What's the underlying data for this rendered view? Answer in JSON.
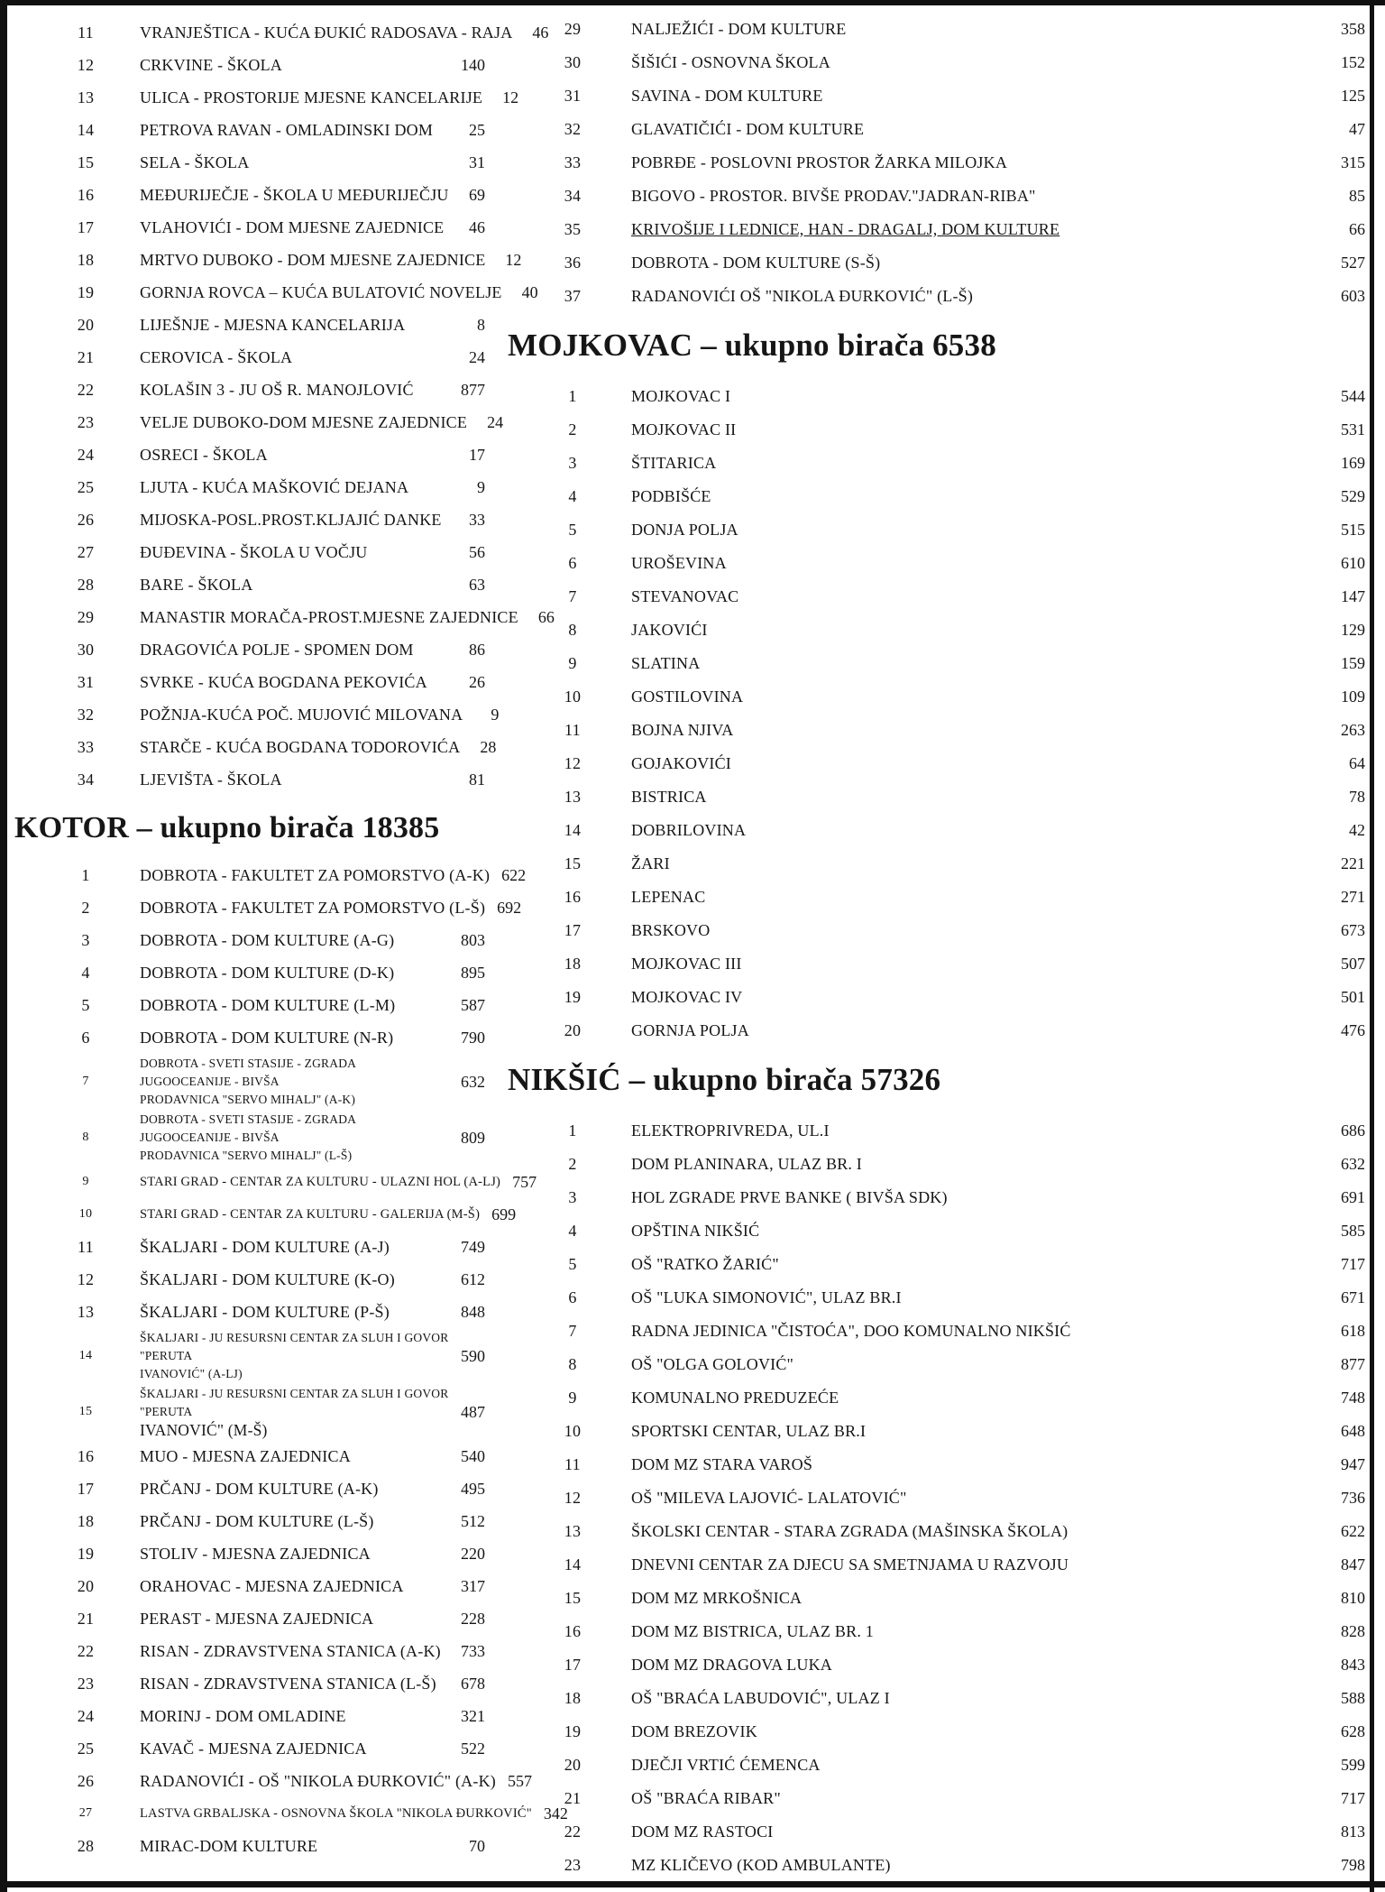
{
  "document": {
    "columns": [
      {
        "name": "left",
        "blocks": [
          {
            "type": "entries",
            "rows": [
              {
                "n": "11",
                "t": "VRANJEŠTICA - KUĆA ĐUKIĆ RADOSAVA - RAJA",
                "v": "46"
              },
              {
                "n": "12",
                "t": "CRKVINE - ŠKOLA",
                "v": "140"
              },
              {
                "n": "13",
                "t": "ULICA - PROSTORIJE MJESNE KANCELARIJE",
                "v": "12"
              },
              {
                "n": "14",
                "t": "PETROVA RAVAN - OMLADINSKI DOM",
                "v": "25"
              },
              {
                "n": "15",
                "t": "SELA - ŠKOLA",
                "v": "31"
              },
              {
                "n": "16",
                "t": "MEĐURIJEČJE - ŠKOLA U MEĐURIJEČJU",
                "v": "69"
              },
              {
                "n": "17",
                "t": "VLAHOVIĆI - DOM MJESNE ZAJEDNICE",
                "v": "46"
              },
              {
                "n": "18",
                "t": "MRTVO DUBOKO - DOM MJESNE ZAJEDNICE",
                "v": "12"
              },
              {
                "n": "19",
                "t": "GORNJA ROVCA – KUĆA BULATOVIĆ NOVELJE",
                "v": "40"
              },
              {
                "n": "20",
                "t": "LIJEŠNJE - MJESNA KANCELARIJA",
                "v": "8"
              },
              {
                "n": "21",
                "t": "CEROVICA - ŠKOLA",
                "v": "24"
              },
              {
                "n": "22",
                "t": "KOLAŠIN 3 - JU OŠ R. MANOJLOVIĆ",
                "v": "877"
              },
              {
                "n": "23",
                "t": "VELJE DUBOKO-DOM MJESNE ZAJEDNICE",
                "v": "24"
              },
              {
                "n": "24",
                "t": "OSRECI - ŠKOLA",
                "v": "17"
              },
              {
                "n": "25",
                "t": "LJUTA - KUĆA MAŠKOVIĆ DEJANA",
                "v": "9"
              },
              {
                "n": "26",
                "t": "MIJOSKA-POSL.PROST.KLJAJIĆ DANKE",
                "v": "33"
              },
              {
                "n": "27",
                "t": "ĐUĐEVINA - ŠKOLA U VOČJU",
                "v": "56"
              },
              {
                "n": "28",
                "t": "BARE - ŠKOLA",
                "v": "63"
              },
              {
                "n": "29",
                "t": "MANASTIR MORAČA-PROST.MJESNE ZAJEDNICE",
                "v": "66"
              },
              {
                "n": "30",
                "t": "DRAGOVIĆA POLJE - SPOMEN DOM",
                "v": "86"
              },
              {
                "n": "31",
                "t": "SVRKE - KUĆA BOGDANA PEKOVIĆA",
                "v": "26"
              },
              {
                "n": "32",
                "t": "POŽNJA-KUĆA POČ. MUJOVIĆ MILOVANA",
                "v": "9"
              },
              {
                "n": "33",
                "t": "STARČE - KUĆA BOGDANA TODOROVIĆA",
                "v": "28"
              },
              {
                "n": "34",
                "t": "LJEVIŠTA - ŠKOLA",
                "v": "81"
              }
            ]
          },
          {
            "type": "heading",
            "text": "KOTOR – ukupno birača 18385"
          },
          {
            "type": "entries",
            "rows": [
              {
                "n": "1",
                "t": "DOBROTA - FAKULTET ZA POMORSTVO (A-K)",
                "v": "622"
              },
              {
                "n": "2",
                "t": "DOBROTA - FAKULTET ZA POMORSTVO (L-Š)",
                "v": "692"
              },
              {
                "n": "3",
                "t": "DOBROTA - DOM KULTURE (A-G)",
                "v": "803"
              },
              {
                "n": "4",
                "t": "DOBROTA - DOM KULTURE (D-K)",
                "v": "895"
              },
              {
                "n": "5",
                "t": "DOBROTA - DOM KULTURE (L-M)",
                "v": "587"
              },
              {
                "n": "6",
                "t": "DOBROTA - DOM KULTURE (N-R)",
                "v": "790"
              },
              {
                "n": "7",
                "t": "DOBROTA - SVETI STASIJE - ZGRADA JUGOOCEANIJE - BIVŠA",
                "t2": "PRODAVNICA \"SERVO MIHALJ\" (A-K)",
                "v": "632",
                "cls": "small2"
              },
              {
                "n": "8",
                "t": "DOBROTA - SVETI STASIJE - ZGRADA JUGOOCEANIJE - BIVŠA",
                "t2": "PRODAVNICA \"SERVO MIHALJ\" (L-Š)",
                "v": "809",
                "cls": "small2"
              },
              {
                "n": "9",
                "t": "STARI GRAD - CENTAR ZA KULTURU - ULAZNI HOL (A-LJ)",
                "v": "757",
                "cls": "small"
              },
              {
                "n": "10",
                "t": "STARI GRAD - CENTAR ZA KULTURU - GALERIJA (M-Š)",
                "v": "699",
                "cls": "small"
              },
              {
                "n": "11",
                "t": "ŠKALJARI - DOM KULTURE (A-J)",
                "v": "749"
              },
              {
                "n": "12",
                "t": "ŠKALJARI - DOM KULTURE (K-O)",
                "v": "612"
              },
              {
                "n": "13",
                "t": "ŠKALJARI - DOM KULTURE (P-Š)",
                "v": "848"
              },
              {
                "n": "14",
                "t": "ŠKALJARI - JU RESURSNI CENTAR ZA SLUH I GOVOR \"PERUTA",
                "t2": "IVANOVIĆ\" (A-LJ)",
                "v": "590",
                "cls": "small2"
              },
              {
                "n": "15",
                "t": "ŠKALJARI - JU RESURSNI CENTAR ZA SLUH I GOVOR \"PERUTA",
                "t2": "IVANOVIĆ\" (M-Š)",
                "v": "487",
                "cls": "small2 big2"
              },
              {
                "n": "16",
                "t": "MUO - MJESNA ZAJEDNICA",
                "v": "540"
              },
              {
                "n": "17",
                "t": "PRČANJ - DOM KULTURE (A-K)",
                "v": "495"
              },
              {
                "n": "18",
                "t": "PRČANJ - DOM KULTURE (L-Š)",
                "v": "512"
              },
              {
                "n": "19",
                "t": "STOLIV - MJESNA ZAJEDNICA",
                "v": "220"
              },
              {
                "n": "20",
                "t": "ORAHOVAC - MJESNA ZAJEDNICA",
                "v": "317"
              },
              {
                "n": "21",
                "t": "PERAST - MJESNA ZAJEDNICA",
                "v": "228"
              },
              {
                "n": "22",
                "t": "RISAN - ZDRAVSTVENA STANICA (A-K)",
                "v": "733"
              },
              {
                "n": "23",
                "t": "RISAN - ZDRAVSTVENA STANICA (L-Š)",
                "v": "678"
              },
              {
                "n": "24",
                "t": "MORINJ - DOM OMLADINE",
                "v": "321"
              },
              {
                "n": "25",
                "t": "KAVAČ - MJESNA ZAJEDNICA",
                "v": "522"
              },
              {
                "n": "26",
                "t": "RADANOVIĆI - OŠ \"NIKOLA ĐURKOVIĆ\" (A-K)",
                "v": "557"
              },
              {
                "n": "27",
                "t": "LASTVA GRBALJSKA - OSNOVNA ŠKOLA \"NIKOLA ĐURKOVIĆ\"",
                "v": "342",
                "cls": "small"
              },
              {
                "n": "28",
                "t": "MIRAC-DOM KULTURE",
                "v": "70"
              }
            ]
          }
        ]
      },
      {
        "name": "right",
        "blocks": [
          {
            "type": "entries",
            "rows": [
              {
                "n": "29",
                "t": "NALJEŽIĆI -  DOM KULTURE",
                "v": "358"
              },
              {
                "n": "30",
                "t": "ŠIŠIĆI - OSNOVNA ŠKOLA",
                "v": "152"
              },
              {
                "n": "31",
                "t": "SAVINA - DOM KULTURE",
                "v": "125"
              },
              {
                "n": "32",
                "t": "GLAVATIČIĆI - DOM KULTURE",
                "v": "47"
              },
              {
                "n": "33",
                "t": "POBRĐE - POSLOVNI PROSTOR ŽARKA MILOJKA",
                "v": "315"
              },
              {
                "n": "34",
                "t": "BIGOVO - PROSTOR. BIVŠE PRODAV.\"JADRAN-RIBA\"",
                "v": "85"
              },
              {
                "n": "35",
                "t": "KRIVOŠIJE I LEDNICE, HAN - DRAGALJ, DOM KULTURE",
                "v": "66",
                "cls": "u"
              },
              {
                "n": "36",
                "t": "DOBROTA - DOM KULTURE (S-Š)",
                "v": "527"
              },
              {
                "n": "37",
                "t": "RADANOVIĆI OŠ \"NIKOLA ĐURKOVIĆ\" (L-Š)",
                "v": "603"
              }
            ]
          },
          {
            "type": "heading",
            "text": "MOJKOVAC – ukupno birača 6538"
          },
          {
            "type": "entries",
            "rows": [
              {
                "n": "1",
                "t": "MOJKOVAC I",
                "v": "544"
              },
              {
                "n": "2",
                "t": "MOJKOVAC II",
                "v": "531"
              },
              {
                "n": "3",
                "t": "ŠTITARICA",
                "v": "169"
              },
              {
                "n": "4",
                "t": "PODBIŠĆE",
                "v": "529"
              },
              {
                "n": "5",
                "t": "DONJA POLJA",
                "v": "515"
              },
              {
                "n": "6",
                "t": "UROŠEVINA",
                "v": "610"
              },
              {
                "n": "7",
                "t": "STEVANOVAC",
                "v": "147"
              },
              {
                "n": "8",
                "t": "JAKOVIĆI",
                "v": "129"
              },
              {
                "n": "9",
                "t": "SLATINA",
                "v": "159"
              },
              {
                "n": "10",
                "t": "GOSTILOVINA",
                "v": "109"
              },
              {
                "n": "11",
                "t": "BOJNA NJIVA",
                "v": "263"
              },
              {
                "n": "12",
                "t": "GOJAKOVIĆI",
                "v": "64"
              },
              {
                "n": "13",
                "t": "BISTRICA",
                "v": "78"
              },
              {
                "n": "14",
                "t": "DOBRILOVINA",
                "v": "42"
              },
              {
                "n": "15",
                "t": "ŽARI",
                "v": "221"
              },
              {
                "n": "16",
                "t": "LEPENAC",
                "v": "271"
              },
              {
                "n": "17",
                "t": "BRSKOVO",
                "v": "673"
              },
              {
                "n": "18",
                "t": "MOJKOVAC III",
                "v": "507"
              },
              {
                "n": "19",
                "t": "MOJKOVAC IV",
                "v": "501"
              },
              {
                "n": "20",
                "t": "GORNJA POLJA",
                "v": "476"
              }
            ]
          },
          {
            "type": "heading",
            "text": "NIKŠIĆ – ukupno birača 57326"
          },
          {
            "type": "entries",
            "rows": [
              {
                "n": "1",
                "t": "ELEKTROPRIVREDA, UL.I",
                "v": "686"
              },
              {
                "n": "2",
                "t": "DOM PLANINARA, ULAZ BR. I",
                "v": "632"
              },
              {
                "n": "3",
                "t": "HOL ZGRADE PRVE BANKE ( BIVŠA SDK)",
                "v": "691"
              },
              {
                "n": "4",
                "t": "OPŠTINA NIKŠIĆ",
                "v": "585"
              },
              {
                "n": "5",
                "t": "OŠ \"RATKO ŽARIĆ\"",
                "v": "717"
              },
              {
                "n": "6",
                "t": "OŠ \"LUKA SIMONOVIĆ\", ULAZ BR.I",
                "v": "671"
              },
              {
                "n": "7",
                "t": "RADNA JEDINICA \"ČISTOĆA\", DOO KOMUNALNO NIKŠIĆ",
                "v": "618"
              },
              {
                "n": "8",
                "t": "OŠ \"OLGA GOLOVIĆ\"",
                "v": "877"
              },
              {
                "n": "9",
                "t": "KOMUNALNO PREDUZEĆE",
                "v": "748"
              },
              {
                "n": "10",
                "t": "SPORTSKI CENTAR, ULAZ BR.I",
                "v": "648"
              },
              {
                "n": "11",
                "t": "DOM MZ STARA VAROŠ",
                "v": "947"
              },
              {
                "n": "12",
                "t": "OŠ \"MILEVA LAJOVIĆ- LALATOVIĆ\"",
                "v": "736"
              },
              {
                "n": "13",
                "t": "ŠKOLSKI CENTAR - STARA ZGRADA (MAŠINSKA ŠKOLA)",
                "v": "622"
              },
              {
                "n": "14",
                "t": "DNEVNI CENTAR ZA DJECU SA SMETNJAMA U RAZVOJU",
                "v": "847"
              },
              {
                "n": "15",
                "t": "DOM MZ MRKOŠNICA",
                "v": "810"
              },
              {
                "n": "16",
                "t": "DOM MZ BISTRICA, ULAZ BR. 1",
                "v": "828"
              },
              {
                "n": "17",
                "t": "DOM MZ DRAGOVA LUKA",
                "v": "843"
              },
              {
                "n": "18",
                "t": "OŠ \"BRAĆA LABUDOVIĆ\", ULAZ I",
                "v": "588"
              },
              {
                "n": "19",
                "t": "DOM BREZOVIK",
                "v": "628"
              },
              {
                "n": "20",
                "t": "DJEČJI VRTIĆ ĆEMENCA",
                "v": "599"
              },
              {
                "n": "21",
                "t": "OŠ \"BRAĆA RIBAR\"",
                "v": "717"
              },
              {
                "n": "22",
                "t": "DOM MZ RASTOCI",
                "v": "813"
              },
              {
                "n": "23",
                "t": "MZ KLIČEVO (KOD AMBULANTE)",
                "v": "798"
              }
            ]
          }
        ]
      }
    ]
  }
}
